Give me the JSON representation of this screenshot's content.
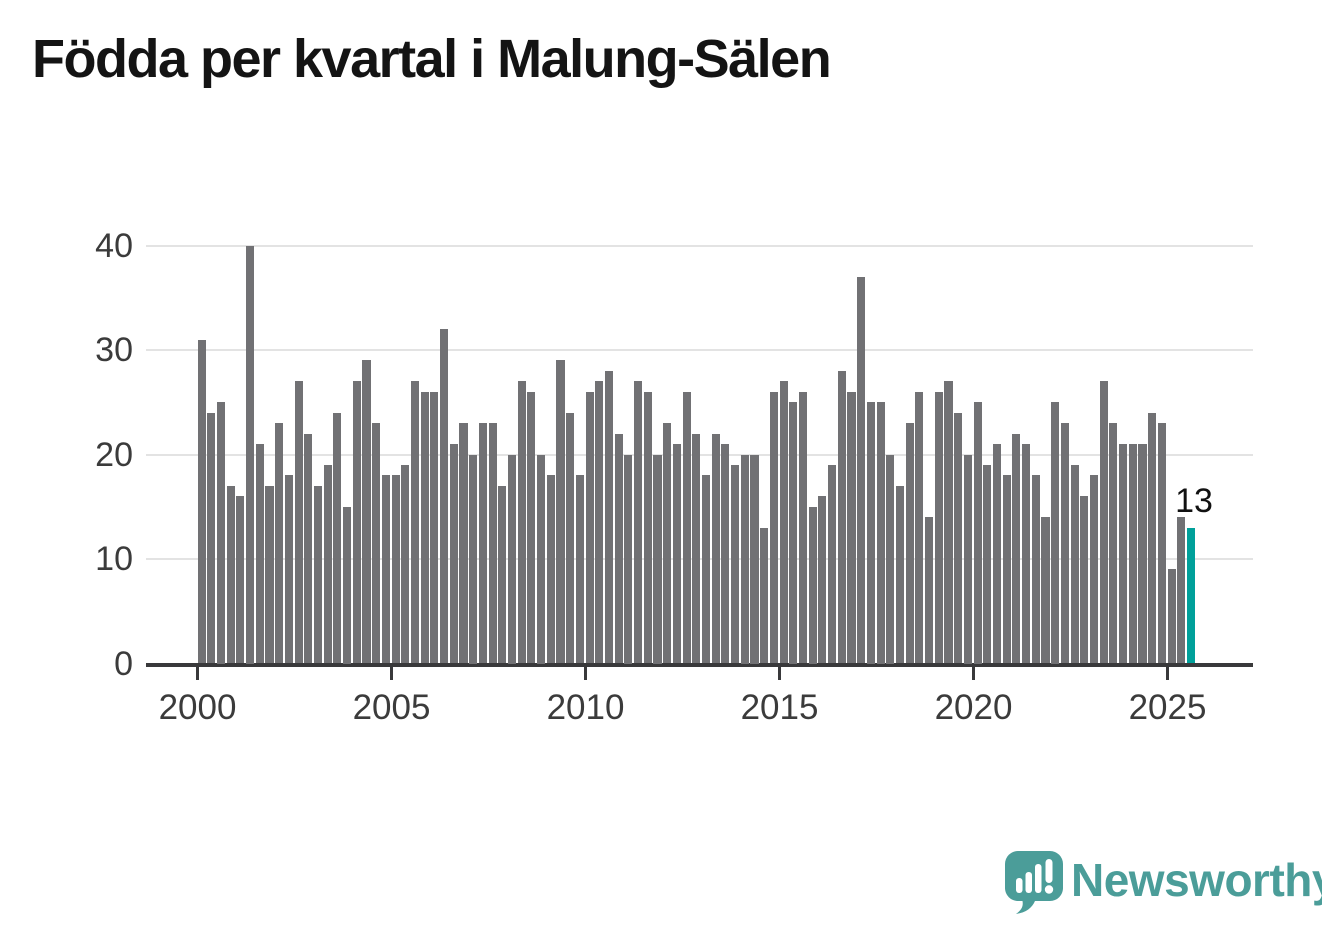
{
  "title": "Födda per kvartal i Malung-Sälen",
  "chart_data": {
    "type": "bar",
    "title": "Födda per kvartal i Malung-Sälen",
    "xlabel": "",
    "ylabel": "",
    "ylim": [
      0,
      40
    ],
    "grid": true,
    "start_quarter": "2000Q1",
    "end_quarter": "2025Q3",
    "series": [
      {
        "name": "Födda per kvartal",
        "values": [
          31,
          24,
          25,
          17,
          16,
          40,
          21,
          17,
          23,
          18,
          27,
          22,
          17,
          19,
          24,
          15,
          27,
          29,
          23,
          18,
          18,
          19,
          27,
          26,
          26,
          32,
          21,
          23,
          20,
          23,
          23,
          17,
          20,
          27,
          26,
          20,
          18,
          29,
          24,
          18,
          26,
          27,
          28,
          22,
          20,
          27,
          26,
          20,
          23,
          21,
          26,
          22,
          18,
          22,
          21,
          19,
          20,
          20,
          13,
          26,
          27,
          25,
          26,
          15,
          16,
          19,
          28,
          26,
          37,
          25,
          25,
          20,
          17,
          23,
          26,
          14,
          26,
          27,
          24,
          20,
          25,
          19,
          21,
          18,
          22,
          21,
          18,
          14,
          25,
          23,
          19,
          16,
          18,
          27,
          23,
          21,
          21,
          21,
          24,
          23,
          9,
          14,
          13
        ]
      }
    ],
    "x_ticks": [
      {
        "label": "2000",
        "quarter_index": 0
      },
      {
        "label": "2005",
        "quarter_index": 20
      },
      {
        "label": "2010",
        "quarter_index": 40
      },
      {
        "label": "2015",
        "quarter_index": 60
      },
      {
        "label": "2020",
        "quarter_index": 80
      },
      {
        "label": "2025",
        "quarter_index": 100
      }
    ],
    "y_ticks": [
      0,
      10,
      20,
      30,
      40
    ],
    "bar_color": "#717174",
    "highlight": {
      "index": 102,
      "value": 13,
      "label": "13",
      "color": "#00a09a"
    },
    "legend": null
  },
  "annotation": {
    "last_value_label": "13"
  },
  "branding": {
    "name": "Newsworthy",
    "wordmark_color": "#4b9d99",
    "icon": "newsworthy-speech-bubble-bar-chart-icon",
    "icon_color": "#4b9d99"
  }
}
